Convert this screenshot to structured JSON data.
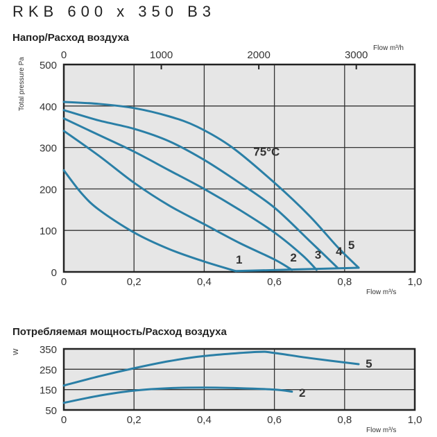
{
  "title": "RKB 600 x 350 B3",
  "chart_data": [
    {
      "type": "line",
      "title": "Напор/Расход воздуха",
      "xlabel": "Flow m³/s",
      "x2label": "Flow m³/h",
      "ylabel": "Total pressure Pa",
      "xlim": [
        0,
        1.0
      ],
      "ylim": [
        0,
        500
      ],
      "xticks": [
        "0",
        "0,2",
        "0,4",
        "0,6",
        "0,8",
        "1,0"
      ],
      "yticks": [
        "0",
        "100",
        "200",
        "300",
        "400",
        "500"
      ],
      "x2ticks": [
        "0",
        "1000",
        "2000",
        "3000"
      ],
      "grid": true,
      "annotation": "75°C",
      "series": [
        {
          "name": "1",
          "x": [
            0,
            0.05,
            0.1,
            0.2,
            0.3,
            0.4,
            0.49
          ],
          "y": [
            245,
            190,
            150,
            95,
            55,
            25,
            2
          ]
        },
        {
          "name": "2",
          "x": [
            0,
            0.1,
            0.2,
            0.3,
            0.4,
            0.5,
            0.6,
            0.65
          ],
          "y": [
            340,
            280,
            215,
            160,
            115,
            70,
            30,
            5
          ]
        },
        {
          "name": "3",
          "x": [
            0,
            0.1,
            0.2,
            0.3,
            0.4,
            0.5,
            0.6,
            0.68,
            0.72
          ],
          "y": [
            370,
            330,
            290,
            245,
            200,
            150,
            95,
            40,
            5
          ]
        },
        {
          "name": "4",
          "x": [
            0,
            0.1,
            0.2,
            0.3,
            0.4,
            0.5,
            0.6,
            0.7,
            0.78
          ],
          "y": [
            390,
            365,
            345,
            315,
            270,
            215,
            155,
            75,
            10
          ]
        },
        {
          "name": "5",
          "x": [
            0,
            0.1,
            0.2,
            0.3,
            0.38,
            0.48,
            0.6,
            0.7,
            0.78,
            0.84
          ],
          "y": [
            410,
            405,
            395,
            375,
            350,
            300,
            215,
            135,
            60,
            10
          ]
        },
        {
          "x": [
            0.49,
            0.84
          ],
          "y": [
            2,
            10
          ]
        }
      ]
    },
    {
      "type": "line",
      "title": "Потребляемая мощность/Расход воздуха",
      "xlabel": "Flow m³/s",
      "ylabel": "W",
      "xlim": [
        0,
        1.0
      ],
      "ylim": [
        50,
        350
      ],
      "xticks": [
        "0",
        "0,2",
        "0,4",
        "0,6",
        "0,8",
        "1,0"
      ],
      "yticks": [
        "50",
        "150",
        "250",
        "350"
      ],
      "grid": true,
      "series": [
        {
          "name": "5",
          "x": [
            0,
            0.1,
            0.2,
            0.3,
            0.4,
            0.55,
            0.6,
            0.7,
            0.84
          ],
          "y": [
            170,
            215,
            255,
            290,
            315,
            335,
            330,
            305,
            275
          ]
        },
        {
          "name": "2",
          "x": [
            0,
            0.1,
            0.2,
            0.3,
            0.4,
            0.5,
            0.6,
            0.65
          ],
          "y": [
            85,
            120,
            145,
            157,
            160,
            157,
            150,
            140
          ]
        }
      ]
    }
  ],
  "colors": {
    "curve": "#2a7fa6",
    "plot_bg": "#e6e6e6",
    "grid": "#333333"
  }
}
